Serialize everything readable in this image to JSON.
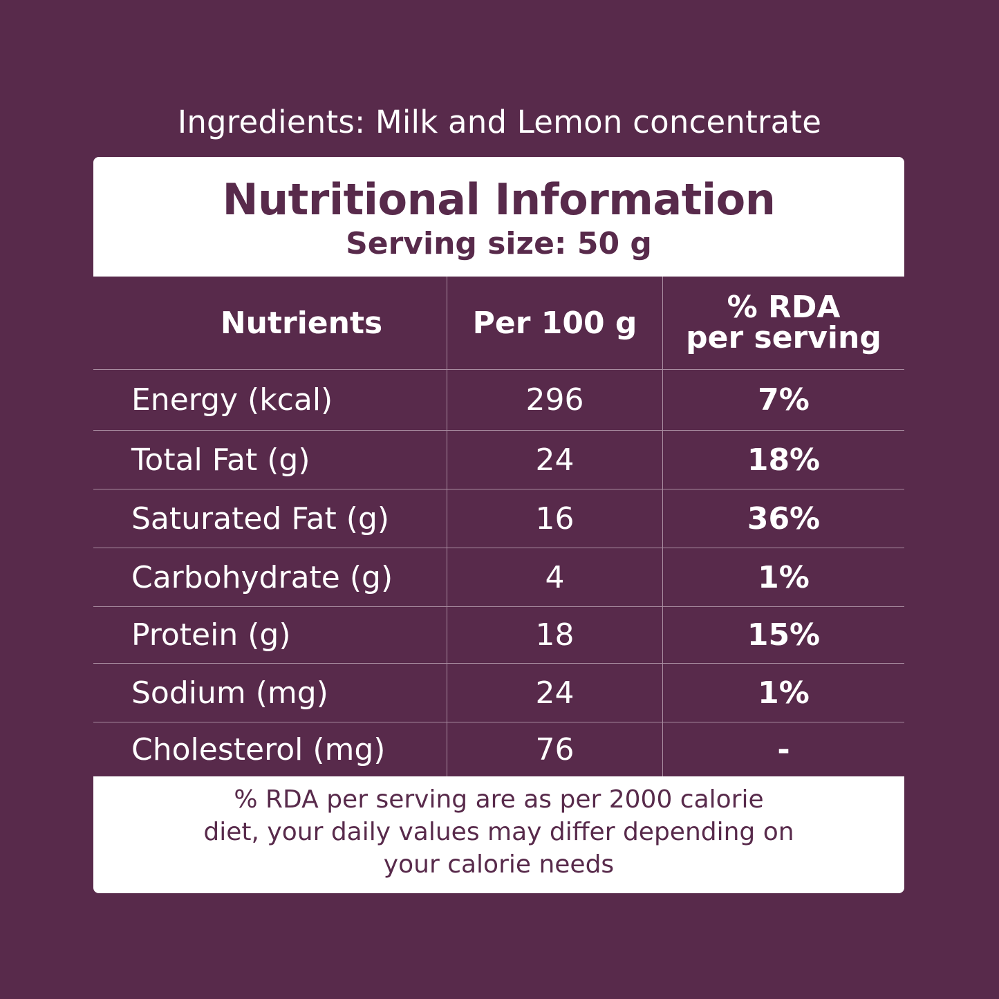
{
  "ingredients": "Ingredients: Milk and Lemon concentrate",
  "panel": {
    "title": "Nutritional Information",
    "serving": "Serving size: 50 g"
  },
  "table": {
    "headers": {
      "nutrients": "Nutrients",
      "per100": "Per 100 g",
      "rda_line1": "% RDA",
      "rda_line2": "per serving"
    },
    "rows": [
      {
        "nutrient": "Energy (kcal)",
        "per100": "296",
        "rda": "7%"
      },
      {
        "nutrient": "Total Fat (g)",
        "per100": "24",
        "rda": "18%"
      },
      {
        "nutrient": "Saturated Fat (g)",
        "per100": "16",
        "rda": "36%"
      },
      {
        "nutrient": "Carbohydrate (g)",
        "per100": "4",
        "rda": "1%"
      },
      {
        "nutrient": "Protein (g)",
        "per100": "18",
        "rda": "15%"
      },
      {
        "nutrient": "Sodium (mg)",
        "per100": "24",
        "rda": "1%"
      },
      {
        "nutrient": "Cholesterol (mg)",
        "per100": "76",
        "rda": "-"
      }
    ]
  },
  "footnote": {
    "line1": "% RDA per serving are as per 2000 calorie",
    "line2": "diet, your daily values may differ depending on",
    "line3": "your calorie needs"
  },
  "colors": {
    "background": "#582a4b",
    "panel": "#ffffff",
    "text_on_dark": "#ffffff",
    "text_on_light": "#582a4b"
  }
}
